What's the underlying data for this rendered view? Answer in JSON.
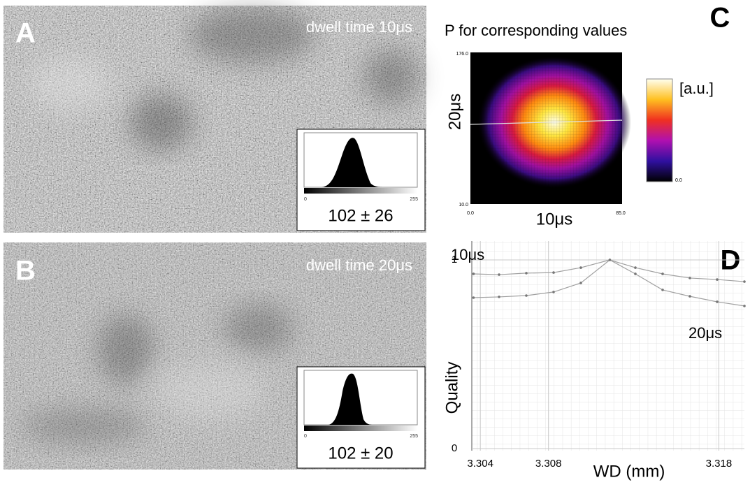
{
  "panel_a": {
    "label": "A",
    "caption": "dwell time 10μs",
    "hist_min": "0",
    "hist_max": "255",
    "stat": "102 ± 26"
  },
  "panel_b": {
    "label": "B",
    "caption": "dwell time 20μs",
    "hist_min": "0",
    "hist_max": "255",
    "stat": "102 ± 20"
  },
  "panel_c": {
    "label": "C",
    "title": "P for corresponding values",
    "y_top": "176.0",
    "y_bottom": "10.0",
    "x_left": "0.0",
    "x_right": "85.0",
    "x_label": "10μs",
    "y_label": "20μs",
    "colorbar_label": "[a.u.]",
    "colorbar_min": "0.0"
  },
  "panel_d": {
    "label": "D"
  },
  "chart_data": {
    "type": "line",
    "xlabel": "WD (mm)",
    "ylabel": "Quality",
    "xlim": [
      3.3035,
      3.3195
    ],
    "xticks": [
      3.304,
      3.308,
      3.318
    ],
    "ylim": [
      0,
      1.1
    ],
    "yticks": [
      0,
      1
    ],
    "grid": true,
    "series": [
      {
        "name": "10μs",
        "color": "#a0a0a0",
        "x": [
          3.3036,
          3.3051,
          3.3067,
          3.3083,
          3.3099,
          3.3116,
          3.3131,
          3.3147,
          3.3163,
          3.3179,
          3.3195
        ],
        "values": [
          0.926,
          0.922,
          0.93,
          0.933,
          0.959,
          1.0,
          0.959,
          0.926,
          0.904,
          0.896,
          0.885
        ]
      },
      {
        "name": "20μs",
        "color": "#a0a0a0",
        "x": [
          3.3036,
          3.3051,
          3.3067,
          3.3083,
          3.3099,
          3.3116,
          3.3131,
          3.3147,
          3.3163,
          3.3179,
          3.3195
        ],
        "values": [
          0.8,
          0.804,
          0.811,
          0.83,
          0.878,
          1.0,
          0.926,
          0.841,
          0.807,
          0.778,
          0.756
        ]
      }
    ]
  }
}
